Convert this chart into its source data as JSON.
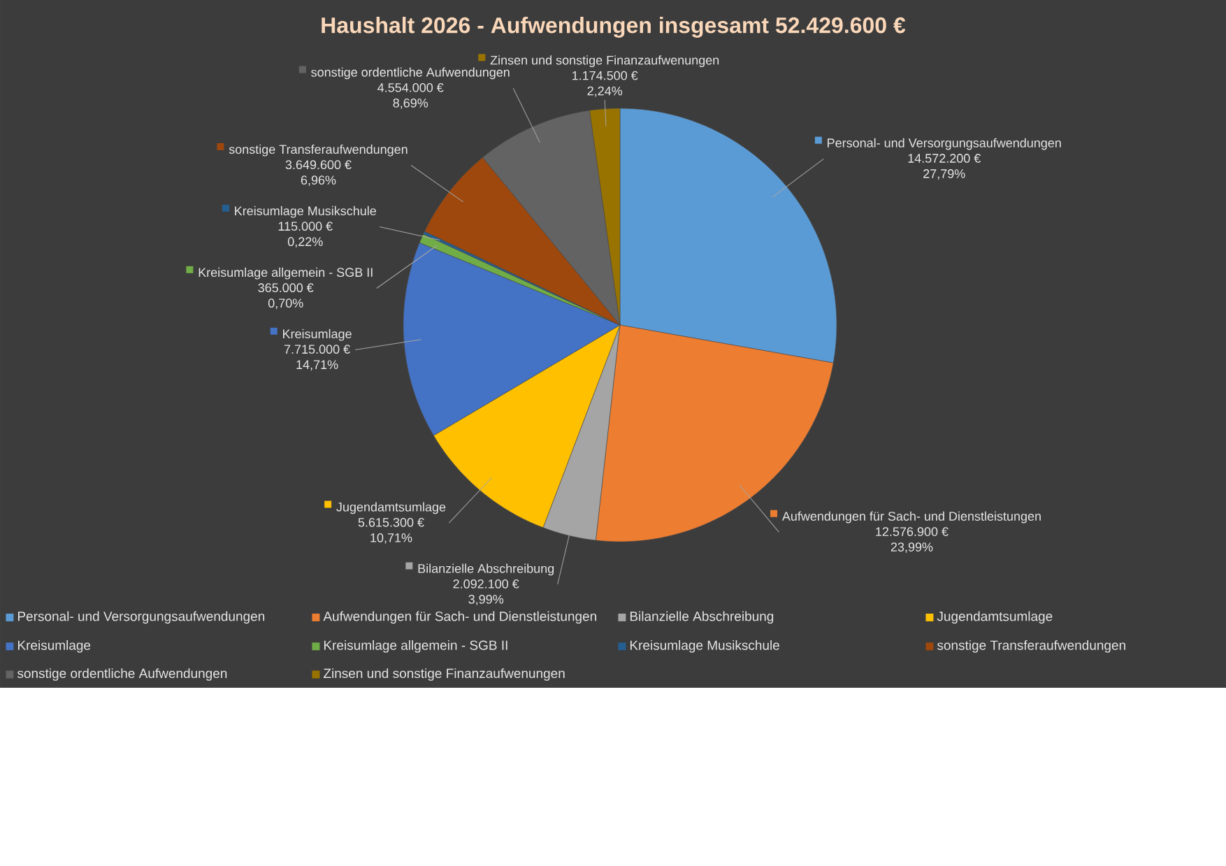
{
  "chart_data": {
    "type": "pie",
    "title": "Haushalt 2026 - Aufwendungen insgesamt 52.429.600 €",
    "categories": [
      "Personal- und Versorgungsaufwendungen",
      "Aufwendungen für Sach- und Dienstleistungen",
      "Bilanzielle Abschreibung",
      "Jugendamtsumlage",
      "Kreisumlage",
      "Kreisumlage allgemein - SGB II",
      "Kreisumlage Musikschule",
      "sonstige Transferaufwendungen",
      "sonstige ordentliche Aufwendungen",
      "Zinsen und sonstige Finanzaufwenungen"
    ],
    "values": [
      14572200,
      12576900,
      2092100,
      5615300,
      7715000,
      365000,
      115000,
      3649600,
      4554000,
      1174500
    ],
    "colors": [
      "#5b9bd5",
      "#ed7d31",
      "#a5a5a5",
      "#ffc000",
      "#4472c4",
      "#70ad47",
      "#255e91",
      "#9e480e",
      "#636363",
      "#997300"
    ],
    "value_labels": [
      "14.572.200 €",
      "12.576.900 €",
      "2.092.100 €",
      "5.615.300 €",
      "7.715.000 €",
      "365.000 €",
      "115.000 €",
      "3.649.600 €",
      "4.554.000 €",
      "1.174.500 €"
    ],
    "annotations": [
      "27,79%",
      "23,99%",
      "3,99%",
      "10,71%",
      "14,71%",
      "0,70%",
      "0,22%",
      "6,96%",
      "8,69%",
      "2,24%"
    ],
    "legend": "bottom"
  }
}
